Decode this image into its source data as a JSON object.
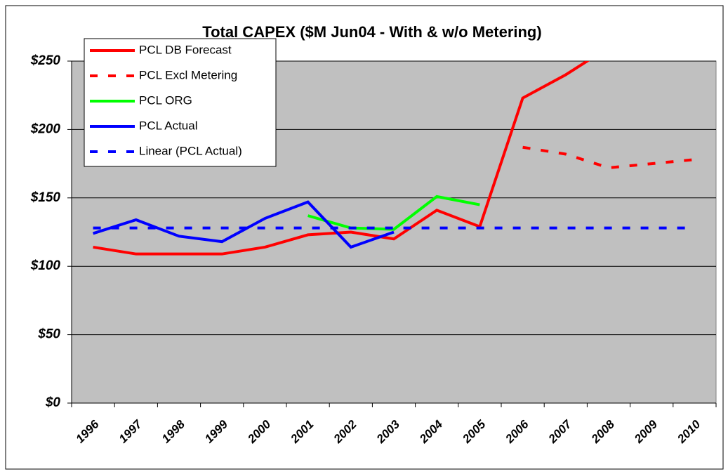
{
  "chart_data": {
    "type": "line",
    "title": "Total CAPEX ($M Jun04 - With & w/o Metering)",
    "categories": [
      "1996",
      "1997",
      "1998",
      "1999",
      "2000",
      "2001",
      "2002",
      "2003",
      "2004",
      "2005",
      "2006",
      "2007",
      "2008",
      "2009",
      "2010"
    ],
    "series": [
      {
        "name": "PCL DB Forecast",
        "color": "#ff0000",
        "dash": "solid",
        "values": [
          114,
          109,
          109,
          109,
          114,
          123,
          125,
          120,
          141,
          129,
          223,
          240,
          260,
          null,
          null
        ]
      },
      {
        "name": "PCL Excl Metering",
        "color": "#ff0000",
        "dash": "dotted",
        "values": [
          null,
          null,
          null,
          null,
          null,
          null,
          null,
          null,
          null,
          null,
          187,
          182,
          172,
          175,
          178
        ]
      },
      {
        "name": "PCL ORG",
        "color": "#00ff00",
        "dash": "solid",
        "values": [
          null,
          null,
          null,
          null,
          null,
          137,
          128,
          127,
          151,
          145,
          null,
          null,
          null,
          null,
          null
        ]
      },
      {
        "name": "PCL Actual",
        "color": "#0000ff",
        "dash": "solid",
        "values": [
          124,
          134,
          122,
          118,
          135,
          147,
          114,
          125,
          null,
          null,
          null,
          null,
          null,
          null,
          null
        ]
      },
      {
        "name": "Linear (PCL Actual)",
        "color": "#0000ff",
        "dash": "dotted",
        "values": [
          128,
          128,
          128,
          128,
          128,
          128,
          128,
          128,
          128,
          128,
          128,
          128,
          128,
          128,
          128
        ]
      }
    ],
    "ylim": [
      0,
      250
    ],
    "yticks": [
      {
        "value": 0,
        "label": "$0"
      },
      {
        "value": 50,
        "label": "$50"
      },
      {
        "value": 100,
        "label": "$100"
      },
      {
        "value": 150,
        "label": "$150"
      },
      {
        "value": 200,
        "label": "$200"
      },
      {
        "value": 250,
        "label": "$250"
      }
    ],
    "grid": true,
    "legend": "top-left"
  }
}
